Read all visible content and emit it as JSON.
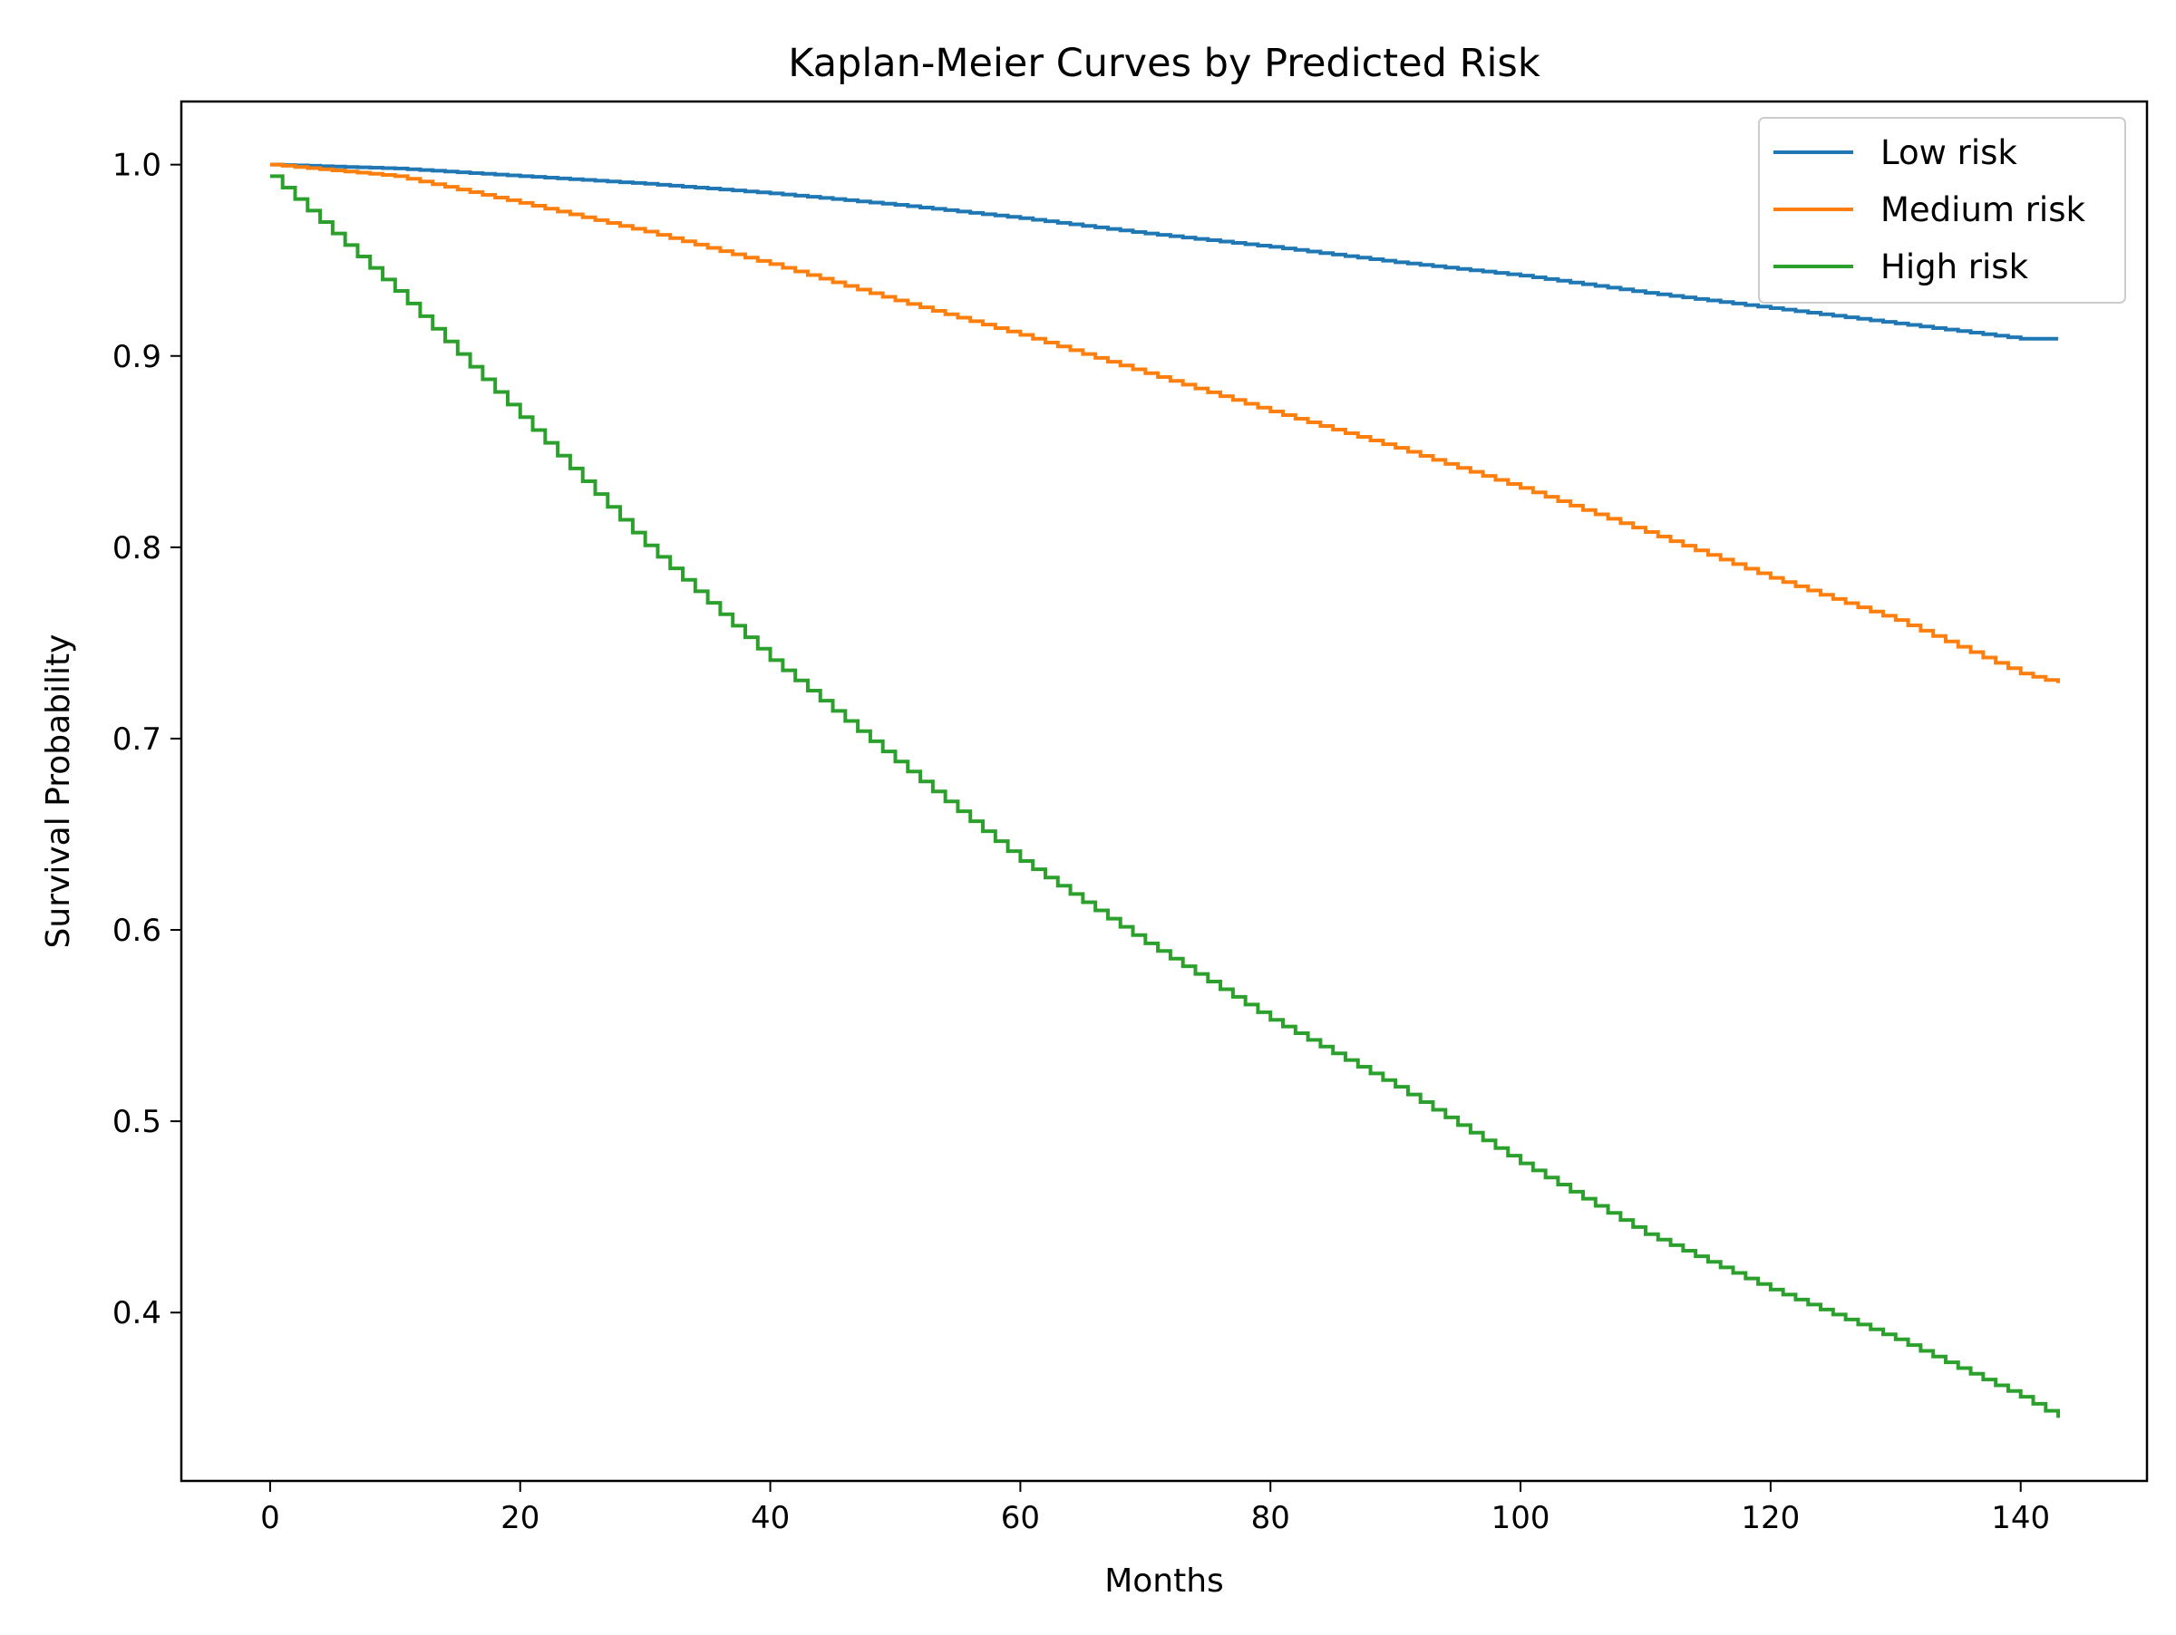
{
  "chart_data": {
    "type": "line",
    "step": true,
    "title": "Kaplan-Meier Curves by Predicted Risk",
    "xlabel": "Months",
    "ylabel": "Survival Probability",
    "xlim": [
      -7.1,
      150.1
    ],
    "ylim": [
      0.312,
      1.033
    ],
    "xticks": [
      0,
      20,
      40,
      60,
      80,
      100,
      120,
      140
    ],
    "yticks": [
      0.4,
      0.5,
      0.6,
      0.7,
      0.8,
      0.9,
      1.0
    ],
    "xtick_labels": [
      "0",
      "20",
      "40",
      "60",
      "80",
      "100",
      "120",
      "140"
    ],
    "ytick_labels": [
      "0.4",
      "0.5",
      "0.6",
      "0.7",
      "0.8",
      "0.9",
      "1.0"
    ],
    "grid": false,
    "legend_position": "top-right",
    "series": [
      {
        "name": "Low risk",
        "color": "#1f77b4",
        "x": [
          0,
          10,
          20,
          30,
          40,
          50,
          60,
          70,
          80,
          90,
          100,
          110,
          120,
          130,
          140,
          143
        ],
        "y": [
          1.0,
          0.998,
          0.994,
          0.99,
          0.985,
          0.979,
          0.972,
          0.964,
          0.957,
          0.949,
          0.942,
          0.933,
          0.925,
          0.917,
          0.909,
          0.909
        ]
      },
      {
        "name": "Medium risk",
        "color": "#ff7f0e",
        "x": [
          0,
          10,
          20,
          30,
          40,
          50,
          60,
          70,
          80,
          90,
          100,
          110,
          120,
          130,
          140,
          143
        ],
        "y": [
          1.0,
          0.994,
          0.98,
          0.965,
          0.948,
          0.929,
          0.911,
          0.891,
          0.871,
          0.852,
          0.831,
          0.808,
          0.784,
          0.762,
          0.734,
          0.729
        ]
      },
      {
        "name": "High risk",
        "color": "#2ca02c",
        "x": [
          0,
          10,
          20,
          30,
          40,
          50,
          60,
          70,
          80,
          90,
          100,
          110,
          120,
          130,
          140,
          143
        ],
        "y": [
          0.994,
          0.934,
          0.868,
          0.801,
          0.741,
          0.688,
          0.636,
          0.593,
          0.553,
          0.518,
          0.478,
          0.441,
          0.412,
          0.386,
          0.356,
          0.345
        ]
      }
    ]
  }
}
